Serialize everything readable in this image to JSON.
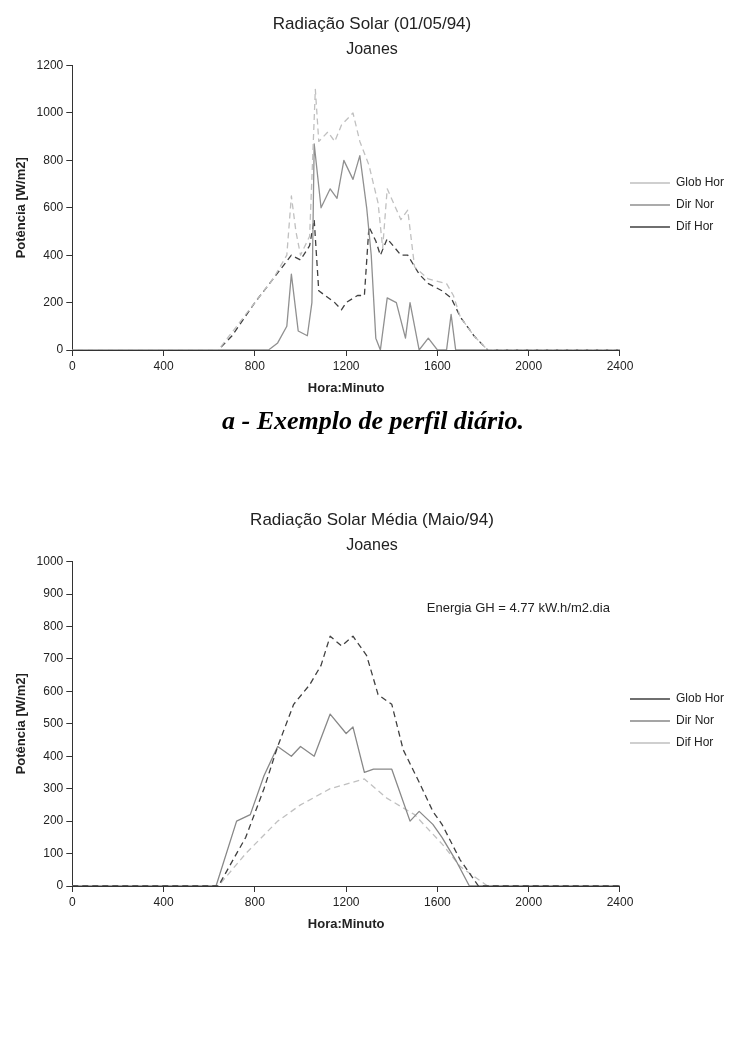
{
  "chart_data": [
    {
      "type": "line",
      "title": "Radiação Solar (01/05/94)",
      "subtitle": "Joanes",
      "xlabel": "Hora:Minuto",
      "ylabel": "Potência [W/m2]",
      "xlim": [
        0,
        2400
      ],
      "xticks": [
        0,
        400,
        800,
        1200,
        1600,
        2000,
        2400
      ],
      "ylim": [
        0,
        1200
      ],
      "yticks": [
        0,
        200,
        400,
        600,
        800,
        1000,
        1200
      ],
      "grid": false,
      "legend": "right",
      "marker": "none",
      "annotations": [
        "a - Exemplo de perfil diário."
      ],
      "series": [
        {
          "name": "Glob Hor",
          "color": "#c0c0c0",
          "line_style": "dashed",
          "x": [
            0,
            640,
            800,
            880,
            940,
            960,
            980,
            1000,
            1040,
            1065,
            1080,
            1120,
            1150,
            1180,
            1230,
            1260,
            1300,
            1340,
            1360,
            1380,
            1440,
            1470,
            1500,
            1560,
            1640,
            1670,
            1700,
            1760,
            1820,
            2400
          ],
          "values": [
            0,
            0,
            200,
            300,
            400,
            650,
            500,
            400,
            480,
            1100,
            880,
            920,
            880,
            950,
            1000,
            880,
            780,
            620,
            430,
            680,
            550,
            590,
            350,
            300,
            280,
            230,
            140,
            60,
            0,
            0
          ]
        },
        {
          "name": "Dir Nor",
          "color": "#909090",
          "line_style": "solid",
          "x": [
            0,
            860,
            900,
            940,
            960,
            990,
            1030,
            1050,
            1060,
            1090,
            1130,
            1160,
            1190,
            1230,
            1260,
            1290,
            1310,
            1330,
            1350,
            1380,
            1420,
            1460,
            1480,
            1520,
            1560,
            1600,
            1640,
            1660,
            1680,
            2400
          ],
          "values": [
            0,
            0,
            30,
            100,
            320,
            80,
            60,
            200,
            870,
            600,
            680,
            640,
            800,
            720,
            820,
            600,
            400,
            50,
            0,
            220,
            200,
            50,
            200,
            0,
            50,
            0,
            0,
            150,
            0,
            0
          ]
        },
        {
          "name": "Dif Hor",
          "color": "#404040",
          "line_style": "dashed",
          "x": [
            0,
            640,
            700,
            800,
            880,
            960,
            1000,
            1040,
            1060,
            1080,
            1150,
            1180,
            1200,
            1250,
            1280,
            1300,
            1330,
            1350,
            1380,
            1440,
            1470,
            1520,
            1560,
            1620,
            1660,
            1700,
            1760,
            1820,
            2400
          ],
          "values": [
            0,
            0,
            60,
            200,
            300,
            400,
            380,
            440,
            550,
            250,
            200,
            170,
            200,
            230,
            230,
            520,
            460,
            400,
            470,
            400,
            400,
            320,
            280,
            250,
            220,
            140,
            60,
            0,
            0
          ]
        }
      ]
    },
    {
      "type": "line",
      "title": "Radiação Solar Média (Maio/94)",
      "subtitle": "Joanes",
      "xlabel": "Hora:Minuto",
      "ylabel": "Potência [W/m2]",
      "xlim": [
        0,
        2400
      ],
      "xticks": [
        0,
        400,
        800,
        1200,
        1600,
        2000,
        2400
      ],
      "ylim": [
        0,
        1000
      ],
      "yticks": [
        0,
        100,
        200,
        300,
        400,
        500,
        600,
        700,
        800,
        900,
        1000
      ],
      "grid": false,
      "legend": "right",
      "marker": "none",
      "annotations": [
        "Energia GH = 4.77 kW.h/m2.dia"
      ],
      "series": [
        {
          "name": "Glob Hor",
          "color": "#404040",
          "line_style": "dashed",
          "x": [
            0,
            640,
            760,
            840,
            900,
            970,
            1040,
            1090,
            1130,
            1180,
            1230,
            1290,
            1340,
            1400,
            1450,
            1520,
            1580,
            1620,
            1700,
            1780,
            2400
          ],
          "values": [
            0,
            0,
            150,
            300,
            430,
            560,
            620,
            680,
            770,
            740,
            770,
            710,
            590,
            560,
            420,
            320,
            230,
            190,
            80,
            0,
            0
          ]
        },
        {
          "name": "Dir Nor",
          "color": "#888888",
          "line_style": "solid",
          "x": [
            0,
            630,
            720,
            780,
            840,
            900,
            960,
            1000,
            1060,
            1130,
            1200,
            1230,
            1280,
            1320,
            1400,
            1480,
            1520,
            1580,
            1620,
            1680,
            1740,
            2400
          ],
          "values": [
            0,
            0,
            200,
            220,
            340,
            430,
            400,
            430,
            400,
            530,
            470,
            490,
            350,
            360,
            360,
            200,
            230,
            190,
            150,
            80,
            0,
            0
          ]
        },
        {
          "name": "Dif Hor",
          "color": "#c0c0c0",
          "line_style": "dashed",
          "x": [
            0,
            640,
            760,
            900,
            1000,
            1130,
            1230,
            1280,
            1380,
            1500,
            1620,
            1700,
            1820,
            2400
          ],
          "values": [
            0,
            0,
            100,
            200,
            250,
            300,
            320,
            330,
            270,
            220,
            130,
            60,
            0,
            0
          ]
        }
      ]
    }
  ]
}
